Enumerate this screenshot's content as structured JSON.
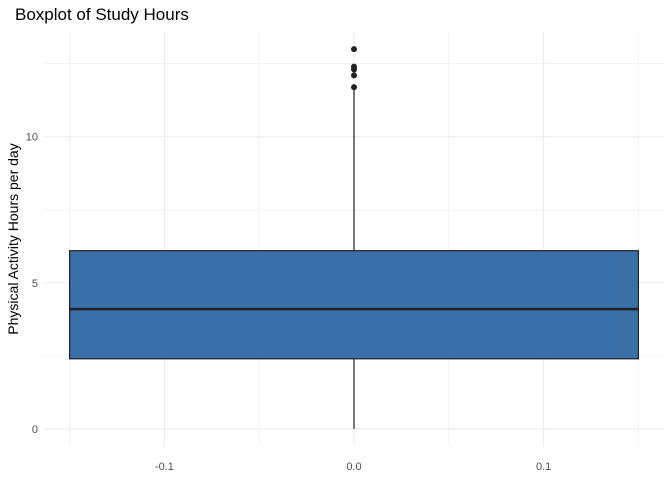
{
  "chart_data": {
    "type": "boxplot",
    "title": "Boxplot of Study Hours",
    "xlabel": "",
    "ylabel": "Physical Activity Hours per day",
    "xlim": [
      -0.15,
      0.15
    ],
    "ylim": [
      0,
      13
    ],
    "x_ticks": [
      -0.1,
      0.0,
      0.1
    ],
    "x_tick_labels": [
      "-0.1",
      "0.0",
      "0.1"
    ],
    "y_ticks": [
      0,
      5,
      10
    ],
    "y_tick_labels": [
      "0",
      "5",
      "10"
    ],
    "grid": true,
    "legend": "none",
    "box": {
      "x": 0.0,
      "whisker_low": 0.0,
      "q1": 2.4,
      "median": 4.1,
      "q3": 6.1,
      "whisker_high": 11.6,
      "outliers": [
        11.7,
        12.1,
        12.3,
        12.4,
        13.0
      ]
    },
    "colors": {
      "box_fill": "#3a6fa8",
      "box_line": "#222222",
      "grid": "#ebebeb",
      "outlier": "#222222"
    }
  }
}
